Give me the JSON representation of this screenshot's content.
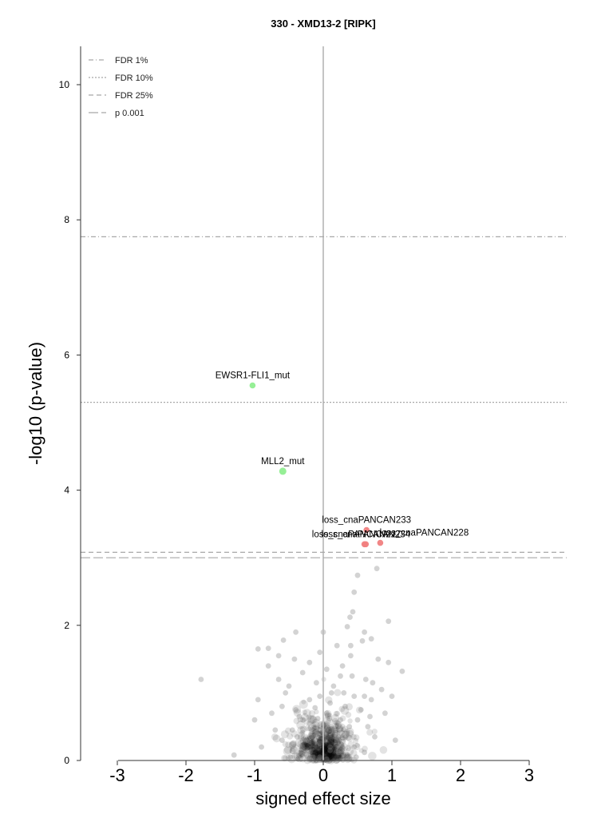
{
  "chart_data": {
    "type": "scatter",
    "title": "330 - XMD13-2 [RIPK]",
    "xlabel": "signed effect size",
    "ylabel": "-log10 (p-value)",
    "xlim": [
      -3,
      3
    ],
    "ylim": [
      0,
      10
    ],
    "x_ticks": [
      "-3",
      "-2",
      "-1",
      "0",
      "1",
      "2",
      "3"
    ],
    "y_ticks": [
      "0",
      "2",
      "4",
      "6",
      "8",
      "10"
    ],
    "grid": false,
    "legend_position": "top-left",
    "thresholds": [
      {
        "label": "FDR 1%",
        "y": 7.75,
        "style": "dashdot"
      },
      {
        "label": "FDR 10%",
        "y": 5.3,
        "style": "dotted"
      },
      {
        "label": "FDR 25%",
        "y": 3.08,
        "style": "dashed"
      },
      {
        "label": "p 0.001",
        "y": 3.0,
        "style": "longdash"
      }
    ],
    "highlighted_points": [
      {
        "label": "EWSR1-FLI1_mut",
        "x": -1.03,
        "y": 5.55,
        "color": "#90ee90"
      },
      {
        "label": "MLL2_mut",
        "x": -0.59,
        "y": 4.28,
        "color": "#90ee90"
      },
      {
        "label": "loss_cnaPANCAN233",
        "x": 0.63,
        "y": 3.41,
        "color": "#f08080"
      },
      {
        "label": "loss_cnaPANCAN227",
        "x": 0.6,
        "y": 3.2,
        "color": "#f08080"
      },
      {
        "label": "loss_cnaPANCAN234",
        "x": 0.62,
        "y": 3.2,
        "color": "#f08080"
      },
      {
        "label": "loss_cnaPANCAN228",
        "x": 0.83,
        "y": 3.22,
        "color": "#f08080"
      }
    ],
    "background_points": {
      "color": "#808080",
      "points": [
        [
          0.5,
          2.74
        ],
        [
          0.45,
          2.49
        ],
        [
          0.78,
          2.84
        ],
        [
          0.43,
          2.2
        ],
        [
          0.95,
          2.06
        ],
        [
          0.39,
          2.12
        ],
        [
          0.35,
          1.98
        ],
        [
          0.6,
          1.9
        ],
        [
          0.7,
          1.8
        ],
        [
          0.57,
          1.77
        ],
        [
          0.4,
          1.7
        ],
        [
          -0.58,
          1.78
        ],
        [
          -0.8,
          1.66
        ],
        [
          -0.95,
          1.65
        ],
        [
          1.15,
          1.32
        ],
        [
          -1.78,
          1.2
        ],
        [
          -0.65,
          1.55
        ],
        [
          -0.42,
          1.5
        ],
        [
          -0.05,
          1.6
        ],
        [
          0.05,
          1.35
        ],
        [
          0.28,
          1.4
        ],
        [
          0.8,
          1.5
        ],
        [
          -0.3,
          1.3
        ],
        [
          0.62,
          1.2
        ],
        [
          0.15,
          1.1
        ],
        [
          -0.1,
          1.15
        ],
        [
          -0.5,
          1.1
        ],
        [
          0.3,
          1.0
        ],
        [
          0.45,
          0.95
        ],
        [
          0.7,
          0.9
        ],
        [
          -0.6,
          0.8
        ],
        [
          -0.75,
          0.7
        ],
        [
          -1.0,
          0.6
        ],
        [
          -0.2,
          0.9
        ],
        [
          0.1,
          0.85
        ],
        [
          0.55,
          0.75
        ],
        [
          0.9,
          0.7
        ],
        [
          -0.35,
          0.65
        ],
        [
          0.25,
          0.6
        ],
        [
          0.65,
          0.5
        ],
        [
          -0.45,
          0.45
        ],
        [
          0.0,
          0.55
        ],
        [
          0.35,
          0.4
        ],
        [
          -0.15,
          0.35
        ],
        [
          0.2,
          0.3
        ],
        [
          -0.6,
          0.3
        ],
        [
          0.75,
          0.35
        ],
        [
          -0.3,
          0.2
        ],
        [
          0.1,
          0.15
        ],
        [
          0.45,
          0.2
        ],
        [
          -0.9,
          0.2
        ],
        [
          -1.3,
          0.08
        ],
        [
          1.05,
          0.3
        ],
        [
          -0.05,
          0.05
        ],
        [
          0.3,
          0.05
        ],
        [
          -0.25,
          0.1
        ],
        [
          0.6,
          0.12
        ],
        [
          -0.7,
          0.45
        ],
        [
          0.5,
          0.6
        ],
        [
          -0.4,
          0.75
        ],
        [
          0.05,
          0.7
        ],
        [
          0.15,
          0.45
        ],
        [
          -0.1,
          0.4
        ],
        [
          0.38,
          0.5
        ],
        [
          -0.2,
          0.55
        ],
        [
          0.6,
          0.95
        ],
        [
          -0.55,
          1.0
        ],
        [
          0.85,
          1.05
        ],
        [
          0.25,
          1.25
        ],
        [
          -0.8,
          1.4
        ],
        [
          0.95,
          1.45
        ],
        [
          -0.2,
          1.45
        ],
        [
          0.4,
          1.55
        ],
        [
          0.2,
          1.7
        ],
        [
          -0.4,
          1.9
        ],
        [
          0.0,
          1.9
        ],
        [
          0.1,
          0.2
        ],
        [
          -0.05,
          0.25
        ],
        [
          0.22,
          0.12
        ],
        [
          -0.15,
          0.05
        ],
        [
          0.05,
          0.02
        ],
        [
          0.18,
          0.35
        ],
        [
          -0.3,
          0.6
        ],
        [
          0.32,
          0.8
        ],
        [
          -0.05,
          0.95
        ],
        [
          0.12,
          1.0
        ],
        [
          0.42,
          1.25
        ],
        [
          -0.65,
          1.2
        ],
        [
          0.72,
          1.15
        ],
        [
          1.0,
          0.95
        ],
        [
          -0.95,
          0.9
        ],
        [
          0.68,
          0.65
        ],
        [
          -0.12,
          0.78
        ],
        [
          0.28,
          0.2
        ],
        [
          -0.38,
          0.35
        ],
        [
          0.48,
          0.05
        ],
        [
          -0.48,
          0.05
        ],
        [
          0.0,
          0.3
        ],
        [
          0.08,
          0.45
        ],
        [
          -0.08,
          0.62
        ]
      ]
    }
  }
}
